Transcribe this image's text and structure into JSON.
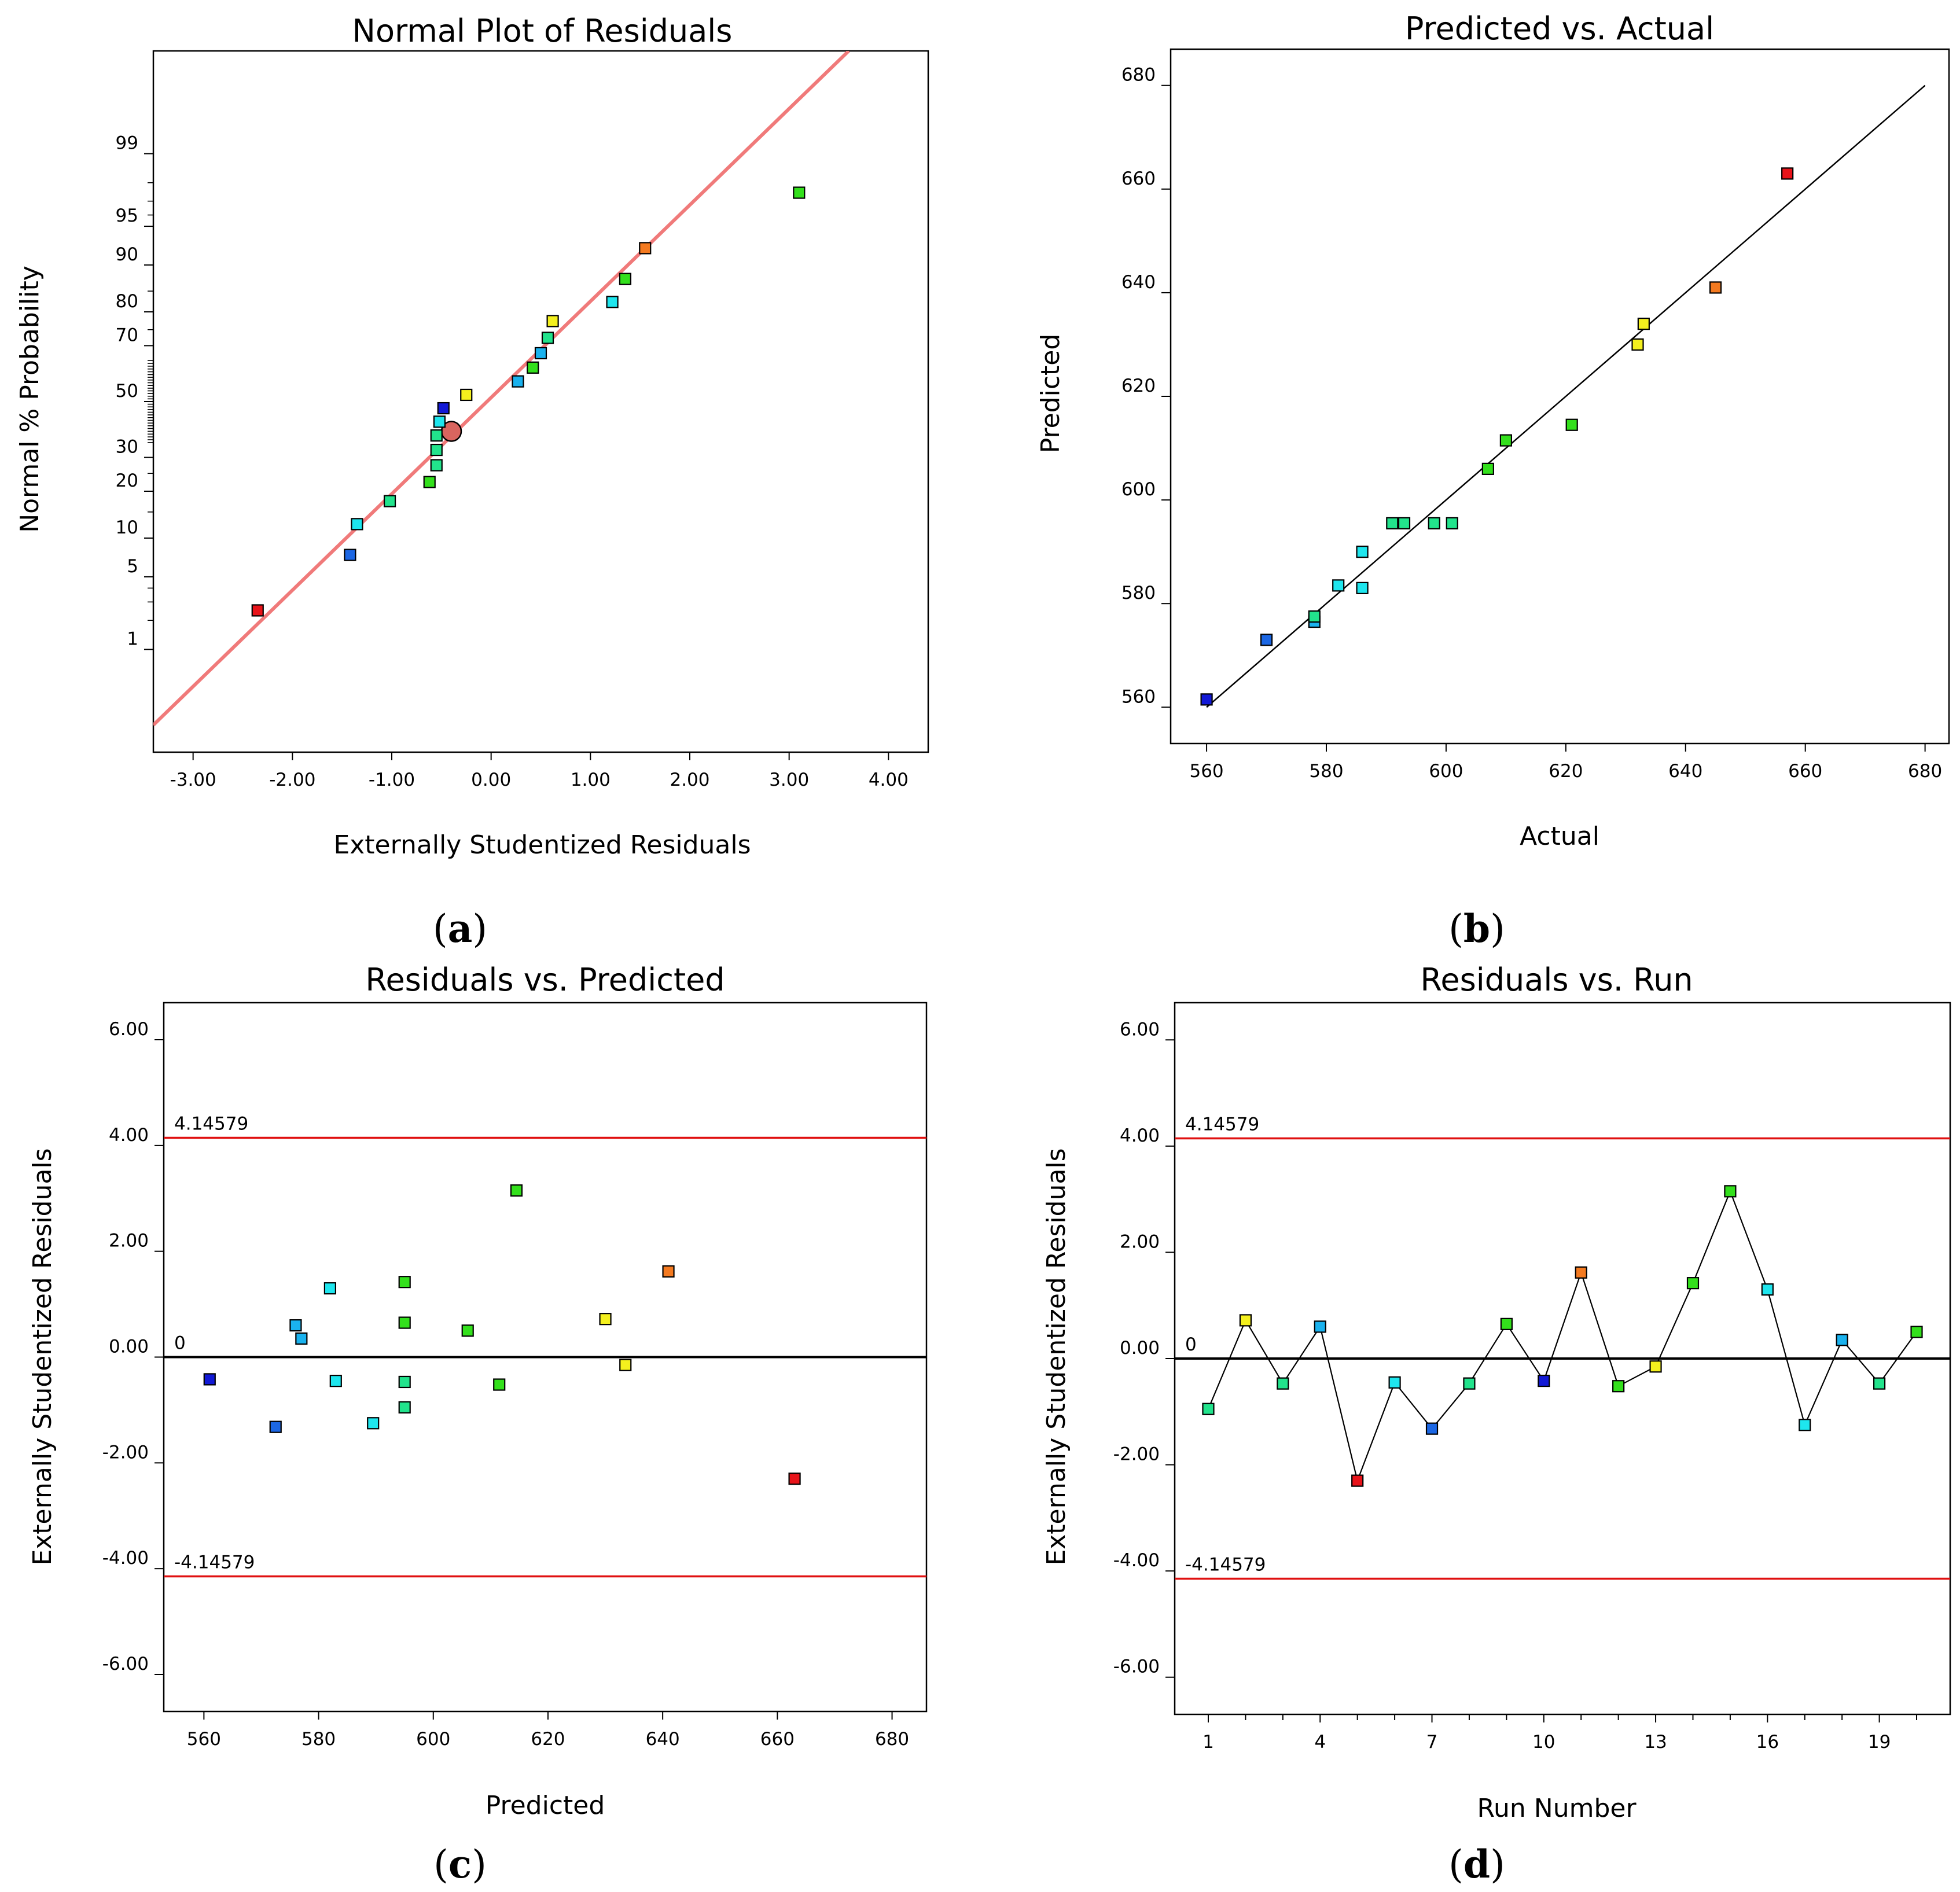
{
  "colors": {
    "red": "#e8141a",
    "orange": "#f47a20",
    "yellow": "#f4f01e",
    "green": "#33e01c",
    "seagreen": "#22e38c",
    "cyan": "#1ee6ee",
    "azure": "#1ab2ee",
    "blue": "#1c67e4",
    "navy": "#1219d6",
    "fitline": "#f07a7a",
    "limitline": "#e01010"
  },
  "chart_data": [
    {
      "panel_label": "a",
      "type": "scatter",
      "title": "Normal Plot of Residuals",
      "xlabel": "Externally Studentized Residuals",
      "ylabel": "Normal % Probability",
      "xlim": [
        -3.4,
        4.4
      ],
      "y_scale": "normal-probability",
      "ylim": [
        0.05,
        99.95
      ],
      "xticks": [
        -3,
        -2,
        -1,
        0,
        1,
        2,
        3,
        4
      ],
      "xtick_labels": [
        "-3.00",
        "-2.00",
        "-1.00",
        "0.00",
        "1.00",
        "2.00",
        "3.00",
        "4.00"
      ],
      "yticks": [
        1,
        5,
        10,
        20,
        30,
        50,
        70,
        80,
        90,
        95,
        99
      ],
      "ytick_labels": [
        "1",
        "5",
        "10",
        "20",
        "30",
        "50",
        "70",
        "80",
        "90",
        "95",
        "99"
      ],
      "fit_line": {
        "x": [
          -3.4,
          3.6
        ],
        "y": [
          0.12,
          99.95
        ]
      },
      "highlight_point": {
        "x": -0.4,
        "y": 39.0
      },
      "points": [
        {
          "x": -2.35,
          "y": 2.5,
          "c": "red"
        },
        {
          "x": -1.42,
          "y": 7.5,
          "c": "blue"
        },
        {
          "x": -1.35,
          "y": 12.5,
          "c": "cyan"
        },
        {
          "x": -1.02,
          "y": 17.5,
          "c": "seagreen"
        },
        {
          "x": -0.62,
          "y": 22.5,
          "c": "green"
        },
        {
          "x": -0.55,
          "y": 27.5,
          "c": "seagreen"
        },
        {
          "x": -0.55,
          "y": 32.5,
          "c": "seagreen"
        },
        {
          "x": -0.55,
          "y": 37.5,
          "c": "seagreen"
        },
        {
          "x": -0.52,
          "y": 42.5,
          "c": "cyan"
        },
        {
          "x": -0.48,
          "y": 47.5,
          "c": "navy"
        },
        {
          "x": -0.25,
          "y": 52.5,
          "c": "yellow"
        },
        {
          "x": 0.27,
          "y": 57.5,
          "c": "azure"
        },
        {
          "x": 0.42,
          "y": 62.5,
          "c": "green"
        },
        {
          "x": 0.5,
          "y": 67.5,
          "c": "azure"
        },
        {
          "x": 0.57,
          "y": 72.5,
          "c": "seagreen"
        },
        {
          "x": 0.62,
          "y": 77.5,
          "c": "yellow"
        },
        {
          "x": 1.22,
          "y": 82.5,
          "c": "cyan"
        },
        {
          "x": 1.35,
          "y": 87.5,
          "c": "green"
        },
        {
          "x": 1.55,
          "y": 92.5,
          "c": "orange"
        },
        {
          "x": 3.1,
          "y": 97.5,
          "c": "green"
        }
      ]
    },
    {
      "panel_label": "b",
      "type": "scatter",
      "title": "Predicted vs. Actual",
      "xlabel": "Actual",
      "ylabel": "Predicted",
      "xlim": [
        554,
        684
      ],
      "ylim": [
        553,
        687
      ],
      "xticks": [
        560,
        580,
        600,
        620,
        640,
        660,
        680
      ],
      "xtick_labels": [
        "560",
        "580",
        "600",
        "620",
        "640",
        "660",
        "680"
      ],
      "yticks": [
        560,
        580,
        600,
        620,
        640,
        660,
        680
      ],
      "ytick_labels": [
        "560",
        "580",
        "600",
        "620",
        "640",
        "660",
        "680"
      ],
      "reference_line": {
        "x": [
          560,
          680
        ],
        "y": [
          560,
          680
        ]
      },
      "points": [
        {
          "x": 560,
          "y": 561.5,
          "c": "navy"
        },
        {
          "x": 570,
          "y": 573,
          "c": "blue"
        },
        {
          "x": 578,
          "y": 576.5,
          "c": "azure"
        },
        {
          "x": 578,
          "y": 577.5,
          "c": "seagreen"
        },
        {
          "x": 582,
          "y": 583.5,
          "c": "cyan"
        },
        {
          "x": 586,
          "y": 583,
          "c": "cyan"
        },
        {
          "x": 586,
          "y": 590,
          "c": "cyan"
        },
        {
          "x": 591,
          "y": 595.5,
          "c": "seagreen"
        },
        {
          "x": 593,
          "y": 595.5,
          "c": "seagreen"
        },
        {
          "x": 598,
          "y": 595.5,
          "c": "seagreen"
        },
        {
          "x": 601,
          "y": 595.5,
          "c": "seagreen"
        },
        {
          "x": 607,
          "y": 606,
          "c": "green"
        },
        {
          "x": 610,
          "y": 611.5,
          "c": "green"
        },
        {
          "x": 621,
          "y": 614.5,
          "c": "green"
        },
        {
          "x": 632,
          "y": 630,
          "c": "yellow"
        },
        {
          "x": 633,
          "y": 634,
          "c": "yellow"
        },
        {
          "x": 645,
          "y": 641,
          "c": "orange"
        },
        {
          "x": 657,
          "y": 663,
          "c": "red"
        }
      ]
    },
    {
      "panel_label": "c",
      "type": "scatter",
      "title": "Residuals vs. Predicted",
      "xlabel": "Predicted",
      "ylabel": "Externally Studentized Residuals",
      "xlim": [
        553,
        686
      ],
      "ylim": [
        -6.7,
        6.7
      ],
      "xticks": [
        560,
        580,
        600,
        620,
        640,
        660,
        680
      ],
      "xtick_labels": [
        "560",
        "580",
        "600",
        "620",
        "640",
        "660",
        "680"
      ],
      "yticks": [
        -6,
        -4,
        -2,
        0,
        2,
        4,
        6
      ],
      "ytick_labels": [
        "-6.00",
        "-4.00",
        "-2.00",
        "0.00",
        "2.00",
        "4.00",
        "6.00"
      ],
      "limits": [
        {
          "y": 4.14579,
          "label": "4.14579"
        },
        {
          "y": 0,
          "label": "0"
        },
        {
          "y": -4.14579,
          "label": "-4.14579"
        }
      ],
      "points": [
        {
          "x": 561,
          "y": -0.42,
          "c": "navy"
        },
        {
          "x": 572.5,
          "y": -1.32,
          "c": "blue"
        },
        {
          "x": 576,
          "y": 0.6,
          "c": "azure"
        },
        {
          "x": 577,
          "y": 0.35,
          "c": "azure"
        },
        {
          "x": 582,
          "y": 1.3,
          "c": "cyan"
        },
        {
          "x": 583,
          "y": -0.45,
          "c": "cyan"
        },
        {
          "x": 589.5,
          "y": -1.25,
          "c": "cyan"
        },
        {
          "x": 595,
          "y": 1.42,
          "c": "green"
        },
        {
          "x": 595,
          "y": 0.65,
          "c": "green"
        },
        {
          "x": 595,
          "y": -0.47,
          "c": "seagreen"
        },
        {
          "x": 595,
          "y": -0.95,
          "c": "seagreen"
        },
        {
          "x": 606,
          "y": 0.5,
          "c": "green"
        },
        {
          "x": 611.5,
          "y": -0.52,
          "c": "green"
        },
        {
          "x": 614.5,
          "y": 3.15,
          "c": "green"
        },
        {
          "x": 630,
          "y": 0.72,
          "c": "yellow"
        },
        {
          "x": 633.5,
          "y": -0.15,
          "c": "yellow"
        },
        {
          "x": 641,
          "y": 1.62,
          "c": "orange"
        },
        {
          "x": 663,
          "y": -2.3,
          "c": "red"
        }
      ]
    },
    {
      "panel_label": "d",
      "type": "line",
      "title": "Residuals vs. Run",
      "xlabel": "Run Number",
      "ylabel": "Externally Studentized Residuals",
      "xlim": [
        0.1,
        20.9
      ],
      "ylim": [
        -6.7,
        6.7
      ],
      "xticks": [
        1,
        4,
        7,
        10,
        13,
        16,
        19
      ],
      "xtick_labels": [
        "1",
        "4",
        "7",
        "10",
        "13",
        "16",
        "19"
      ],
      "minor_xticks": [
        2,
        3,
        5,
        6,
        8,
        9,
        11,
        12,
        14,
        15,
        17,
        18,
        20
      ],
      "yticks": [
        -6,
        -4,
        -2,
        0,
        2,
        4,
        6
      ],
      "ytick_labels": [
        "-6.00",
        "-4.00",
        "-2.00",
        "0.00",
        "2.00",
        "4.00",
        "6.00"
      ],
      "limits": [
        {
          "y": 4.14579,
          "label": "4.14579"
        },
        {
          "y": 0,
          "label": "0"
        },
        {
          "y": -4.14579,
          "label": "-4.14579"
        }
      ],
      "points": [
        {
          "x": 1,
          "y": -0.95,
          "c": "seagreen"
        },
        {
          "x": 2,
          "y": 0.72,
          "c": "yellow"
        },
        {
          "x": 3,
          "y": -0.47,
          "c": "seagreen"
        },
        {
          "x": 4,
          "y": 0.6,
          "c": "azure"
        },
        {
          "x": 5,
          "y": -2.3,
          "c": "red"
        },
        {
          "x": 6,
          "y": -0.45,
          "c": "cyan"
        },
        {
          "x": 7,
          "y": -1.32,
          "c": "blue"
        },
        {
          "x": 8,
          "y": -0.47,
          "c": "seagreen"
        },
        {
          "x": 9,
          "y": 0.65,
          "c": "green"
        },
        {
          "x": 10,
          "y": -0.42,
          "c": "navy"
        },
        {
          "x": 11,
          "y": 1.62,
          "c": "orange"
        },
        {
          "x": 12,
          "y": -0.52,
          "c": "green"
        },
        {
          "x": 13,
          "y": -0.15,
          "c": "yellow"
        },
        {
          "x": 14,
          "y": 1.42,
          "c": "green"
        },
        {
          "x": 15,
          "y": 3.15,
          "c": "green"
        },
        {
          "x": 16,
          "y": 1.3,
          "c": "cyan"
        },
        {
          "x": 17,
          "y": -1.25,
          "c": "cyan"
        },
        {
          "x": 18,
          "y": 0.35,
          "c": "azure"
        },
        {
          "x": 19,
          "y": -0.47,
          "c": "seagreen"
        },
        {
          "x": 20,
          "y": 0.5,
          "c": "green"
        }
      ]
    }
  ]
}
